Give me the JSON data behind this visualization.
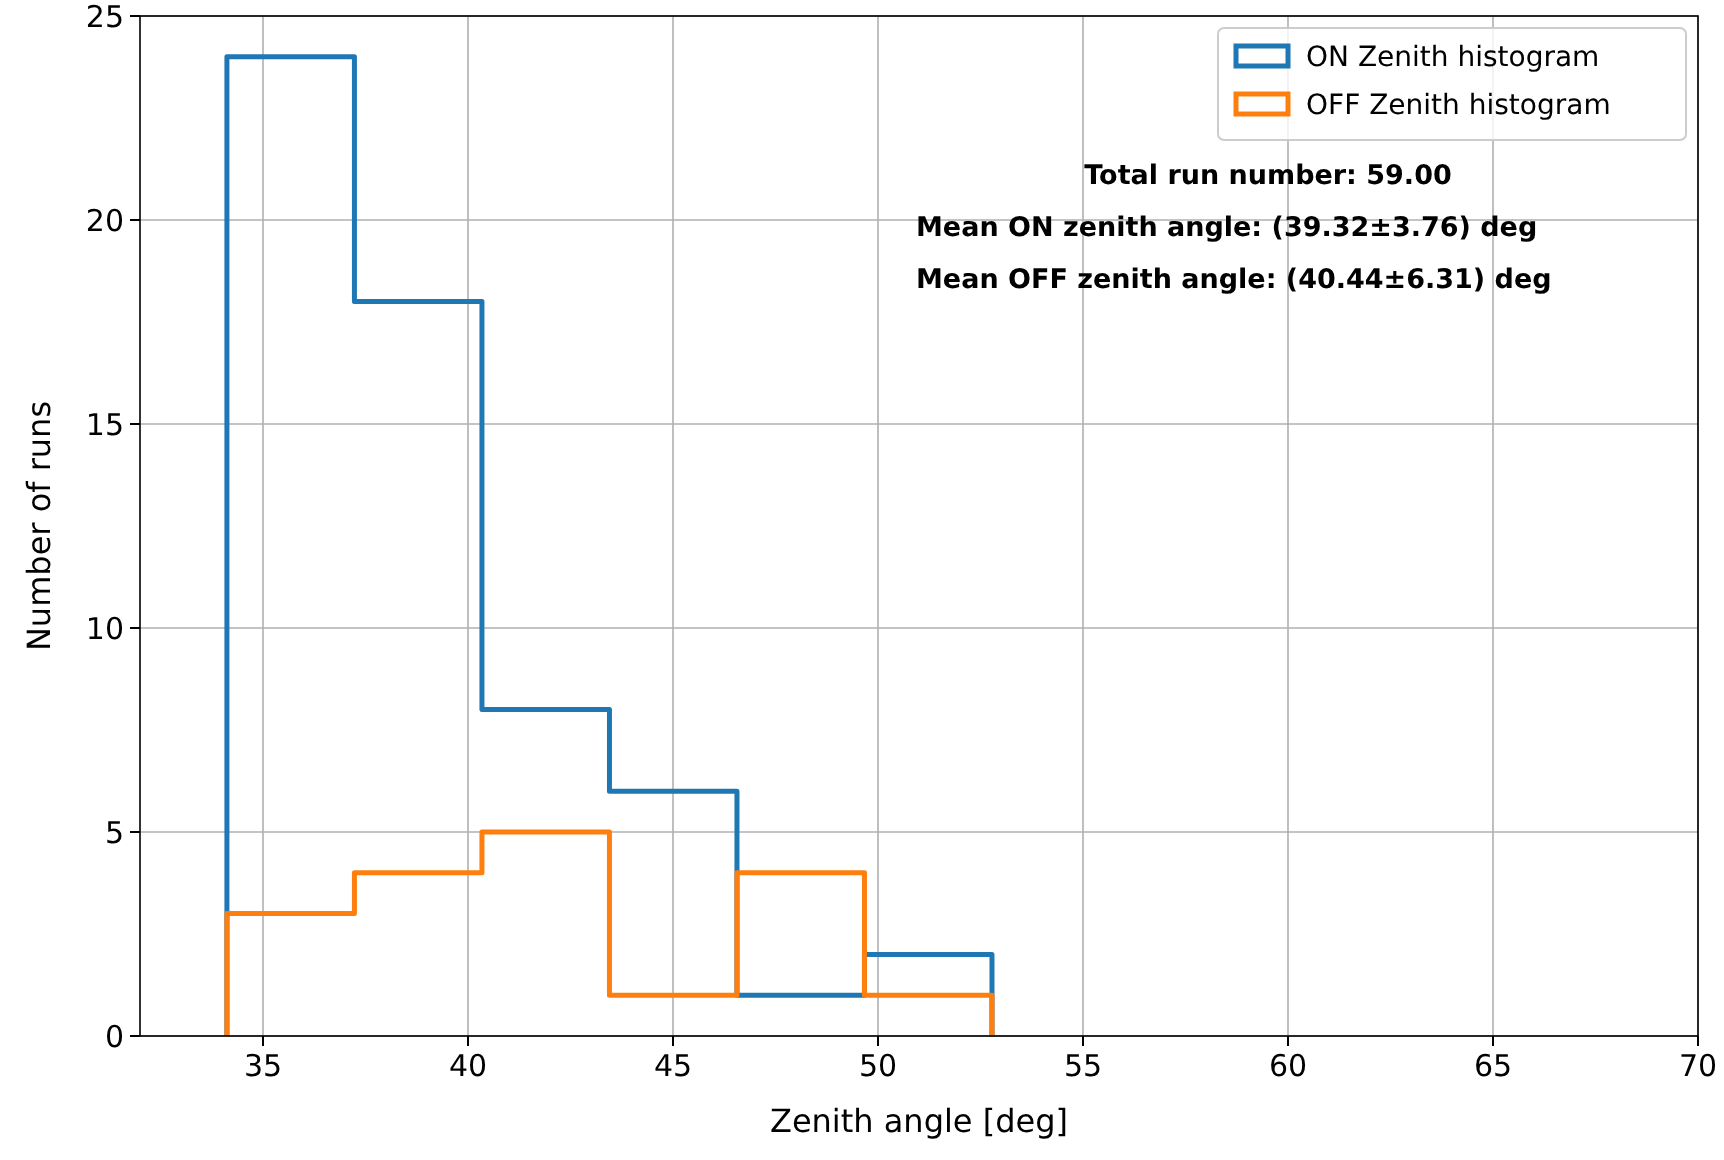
{
  "chart_data": {
    "type": "histogram",
    "xlabel": "Zenith angle [deg]",
    "ylabel": "Number of runs",
    "bins": [
      34.12,
      37.23,
      40.34,
      43.45,
      46.56,
      49.67,
      52.78
    ],
    "series": [
      {
        "name": "ON Zenith histogram",
        "color": "#1f77b4",
        "values": [
          24,
          18,
          8,
          6,
          1,
          2
        ]
      },
      {
        "name": "OFF Zenith histogram",
        "color": "#ff7f0e",
        "values": [
          3,
          4,
          5,
          1,
          4,
          1
        ]
      }
    ],
    "xlim": [
      32,
      70
    ],
    "xticks": [
      35,
      40,
      45,
      50,
      55,
      60,
      65,
      70
    ],
    "ylim": [
      0,
      25
    ],
    "yticks": [
      0,
      5,
      10,
      15,
      20,
      25
    ],
    "grid": true,
    "legend": "top right",
    "annotations": [
      "Total run number: 59.00",
      "Mean ON zenith angle: (39.32±3.76) deg",
      "Mean OFF zenith angle: (40.44±6.31) deg"
    ]
  }
}
